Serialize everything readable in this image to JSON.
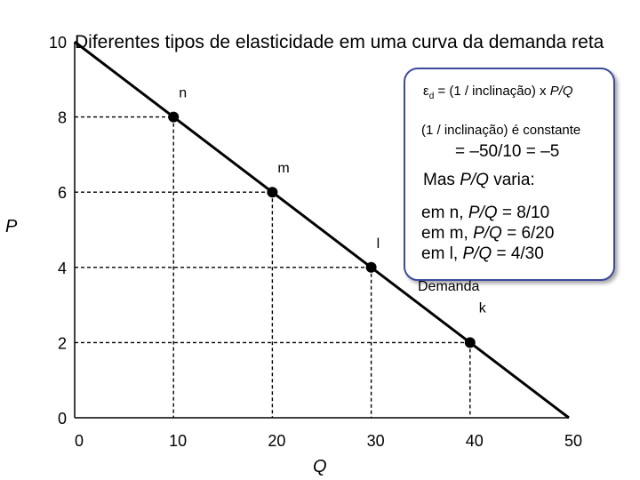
{
  "title": "Diferentes tipos de elasticidade em uma curva da demanda reta",
  "callout": {
    "line1_prefix": "ε",
    "line1_sub": "d",
    "line1_text": " =  (1 / inclinação) x ",
    "line1_italic": "P/Q",
    "line2": "(1 / inclinação) é constante",
    "line3": "= –50/10 = –5",
    "line4_text": "Mas ",
    "line4_italic": "P/Q",
    "line4_suffix": "  varia:",
    "line5_text": "em n, ",
    "line5_italic": "P/Q",
    "line5_suffix": " = 8/10",
    "line6_text": "em m, ",
    "line6_italic": "P/Q",
    "line6_suffix": " = 6/20",
    "line7_text": "em l, ",
    "line7_italic": "P/Q",
    "line7_suffix": " = 4/30"
  },
  "chart_data": {
    "type": "line",
    "title": "Diferentes tipos de elasticidade em uma curva da demanda reta",
    "xlabel": "Q",
    "ylabel": "P",
    "xlim": [
      0,
      50
    ],
    "ylim": [
      0,
      10
    ],
    "x_ticks": [
      0,
      10,
      20,
      30,
      40,
      50
    ],
    "y_ticks": [
      0,
      2,
      4,
      6,
      8,
      10
    ],
    "grid": false,
    "series": [
      {
        "name": "Demanda",
        "x": [
          0,
          50
        ],
        "y": [
          10,
          0
        ]
      }
    ],
    "points": [
      {
        "label": "n",
        "x": 10,
        "y": 8
      },
      {
        "label": "m",
        "x": 20,
        "y": 6
      },
      {
        "label": "l",
        "x": 30,
        "y": 4
      },
      {
        "label": "k",
        "x": 40,
        "y": 2
      }
    ]
  }
}
